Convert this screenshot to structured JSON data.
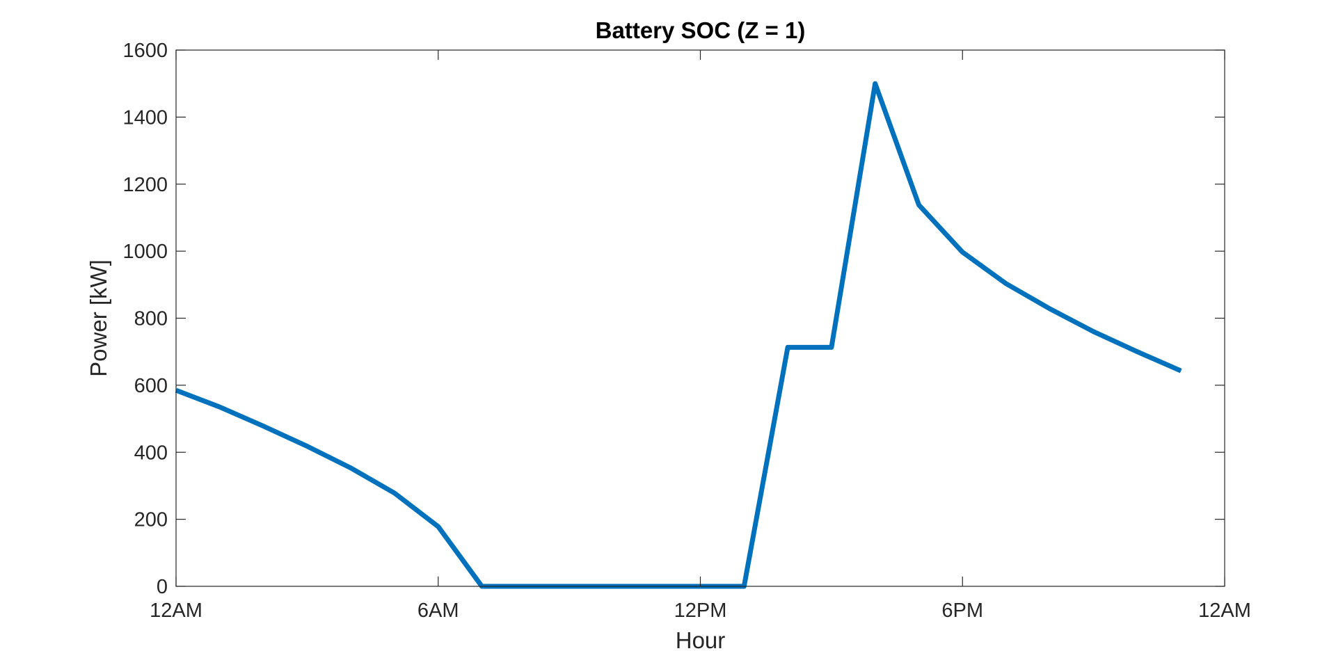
{
  "chart_data": {
    "type": "line",
    "title": "Battery SOC (Z = 1)",
    "xlabel": "Hour",
    "ylabel": "Power [kW]",
    "xlim": [
      0,
      24
    ],
    "ylim": [
      0,
      1600
    ],
    "x_ticks": [
      {
        "value": 0,
        "label": "12AM"
      },
      {
        "value": 6,
        "label": "6AM"
      },
      {
        "value": 12,
        "label": "12PM"
      },
      {
        "value": 18,
        "label": "6PM"
      },
      {
        "value": 24,
        "label": "12AM"
      }
    ],
    "y_ticks": [
      0,
      200,
      400,
      600,
      800,
      1000,
      1200,
      1400,
      1600
    ],
    "grid": false,
    "series": [
      {
        "color": "#0072BD",
        "x": [
          0,
          1,
          2,
          3,
          4,
          5,
          6,
          7,
          8,
          9,
          10,
          11,
          12,
          13,
          14,
          15,
          16,
          17,
          18,
          19,
          20,
          21,
          22,
          23
        ],
        "y": [
          585,
          535,
          478,
          418,
          353,
          278,
          178,
          0,
          0,
          0,
          0,
          0,
          0,
          0,
          713,
          713,
          1500,
          1138,
          997,
          903,
          828,
          760,
          700,
          643
        ]
      }
    ]
  }
}
